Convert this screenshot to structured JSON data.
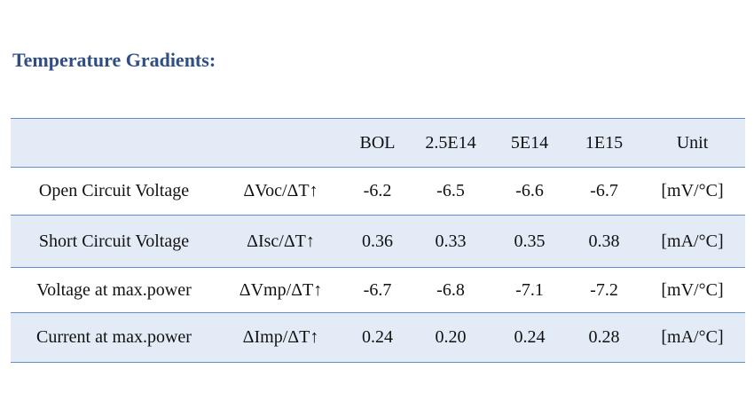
{
  "heading": "Temperature Gradients:",
  "table": {
    "header": [
      "",
      "",
      "BOL",
      "2.5E14",
      "5E14",
      "1E15",
      "Unit"
    ],
    "rows": [
      {
        "name": "Open Circuit Voltage",
        "symbol": "ΔVoc/ΔT↑",
        "bol": "-6.2",
        "f25e14": "-6.5",
        "f5e14": "-6.6",
        "f1e15": "-6.7",
        "unit": "[mV/°C]"
      },
      {
        "name": "Short Circuit Voltage",
        "symbol": "ΔIsc/ΔT↑",
        "bol": "0.36",
        "f25e14": "0.33",
        "f5e14": "0.35",
        "f1e15": "0.38",
        "unit": "[mA/°C]"
      },
      {
        "name": "Voltage at max.power",
        "symbol": "ΔVmp/ΔT↑",
        "bol": "-6.7",
        "f25e14": "-6.8",
        "f5e14": "-7.1",
        "f1e15": "-7.2",
        "unit": "[mV/°C]"
      },
      {
        "name": "Current at max.power",
        "symbol": "ΔImp/ΔT↑",
        "bol": "0.24",
        "f25e14": "0.20",
        "f5e14": "0.24",
        "f1e15": "0.28",
        "unit": "[mA/°C]"
      }
    ],
    "colors": {
      "heading": "#2f4e86",
      "rule": "#5d8ed1",
      "shade": "#e3ebf6"
    }
  }
}
